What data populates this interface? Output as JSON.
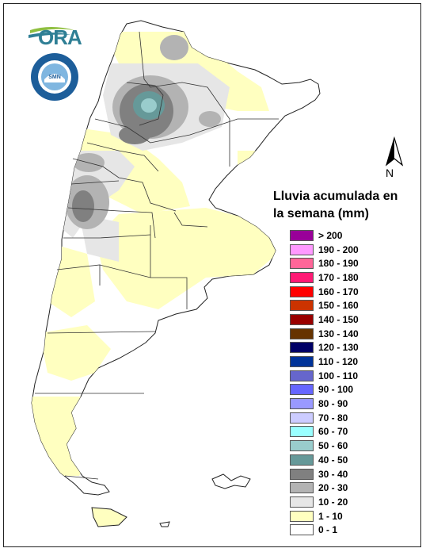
{
  "logo_text": "ORA",
  "seal_text": "SERVICIO METEOROLOGICO NACIONAL · ARGENTINA",
  "north_label": "N",
  "legend": {
    "title": "Lluvia acumulada en la semana (mm)",
    "items": [
      {
        "label": "> 200",
        "color": "#990099"
      },
      {
        "label": "190 - 200",
        "color": "#ff99ff"
      },
      {
        "label": "180 - 190",
        "color": "#ff6699"
      },
      {
        "label": "170 - 180",
        "color": "#ff1a75"
      },
      {
        "label": "160 - 170",
        "color": "#ff0000"
      },
      {
        "label": "150 - 160",
        "color": "#cc3300"
      },
      {
        "label": "140 - 150",
        "color": "#990000"
      },
      {
        "label": "130 - 140",
        "color": "#663300"
      },
      {
        "label": "120 - 130",
        "color": "#000066"
      },
      {
        "label": "110 - 120",
        "color": "#003399"
      },
      {
        "label": "100 - 110",
        "color": "#6666cc"
      },
      {
        "label": "90 - 100",
        "color": "#6666ff"
      },
      {
        "label": "80 - 90",
        "color": "#9999ff"
      },
      {
        "label": "70 - 80",
        "color": "#ccccff"
      },
      {
        "label": "60 - 70",
        "color": "#99ffff"
      },
      {
        "label": "50 - 60",
        "color": "#99cccc"
      },
      {
        "label": "40 - 50",
        "color": "#669999"
      },
      {
        "label": "30 - 40",
        "color": "#808080"
      },
      {
        "label": "20 - 30",
        "color": "#b3b3b3"
      },
      {
        "label": "10 - 20",
        "color": "#e6e6e6"
      },
      {
        "label": "1 - 10",
        "color": "#ffffc0"
      },
      {
        "label": "0 - 1",
        "color": "#ffffff"
      }
    ]
  }
}
